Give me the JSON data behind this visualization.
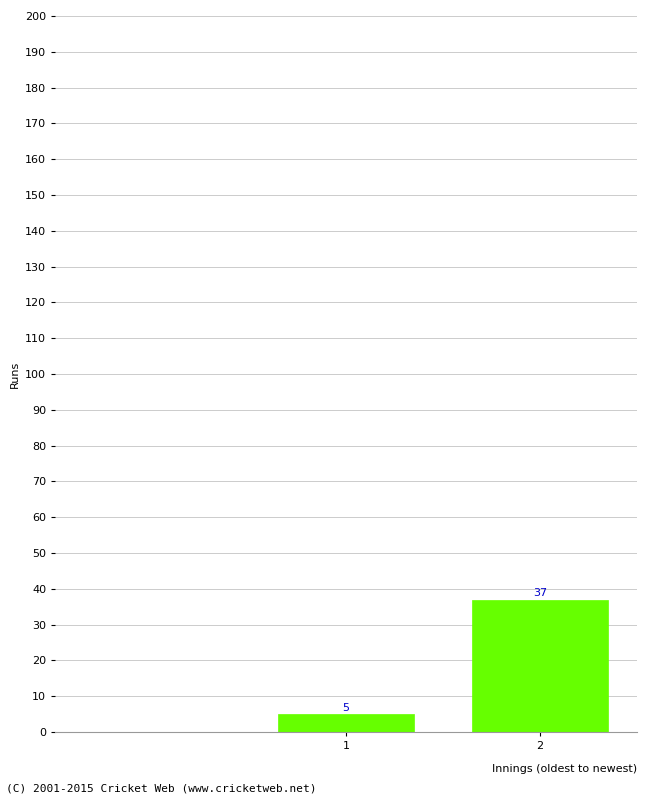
{
  "categories": [
    "1",
    "2"
  ],
  "values": [
    5,
    37
  ],
  "bar_color": "#66ff00",
  "bar_edge_color": "#66ff00",
  "ylabel": "Runs",
  "xlabel": "Innings (oldest to newest)",
  "ylim": [
    0,
    200
  ],
  "yticks": [
    0,
    10,
    20,
    30,
    40,
    50,
    60,
    70,
    80,
    90,
    100,
    110,
    120,
    130,
    140,
    150,
    160,
    170,
    180,
    190,
    200
  ],
  "annotation_color": "#0000cc",
  "annotation_fontsize": 8,
  "grid_color": "#cccccc",
  "background_color": "#ffffff",
  "footer_text": "(C) 2001-2015 Cricket Web (www.cricketweb.net)",
  "footer_fontsize": 8,
  "axis_label_fontsize": 8,
  "tick_fontsize": 8,
  "ylabel_fontsize": 8,
  "bar_width": 0.7,
  "xlim": [
    -0.5,
    2.5
  ]
}
